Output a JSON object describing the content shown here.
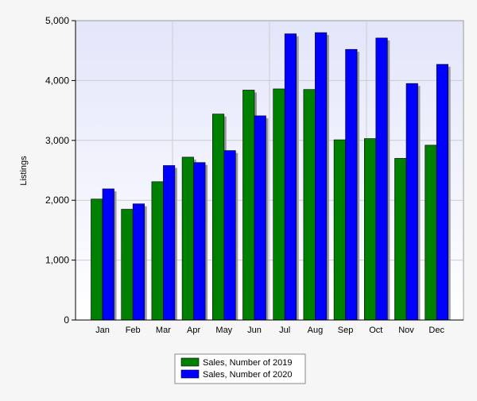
{
  "chart_data": {
    "type": "bar",
    "ylabel": "Listings",
    "xlabel": "",
    "ylim": [
      0,
      5000
    ],
    "yticks": [
      0,
      1000,
      2000,
      3000,
      4000,
      5000
    ],
    "ytick_labels": [
      "0",
      "1,000",
      "2,000",
      "3,000",
      "4,000",
      "5,000"
    ],
    "grid": true,
    "legend_position": "bottom-center",
    "categories": [
      "Jan",
      "Feb",
      "Mar",
      "Apr",
      "May",
      "Jun",
      "Jul",
      "Aug",
      "Sep",
      "Oct",
      "Nov",
      "Dec"
    ],
    "series": [
      {
        "name": "Sales, Number of 2019",
        "color": "#008000",
        "values": [
          2020,
          1850,
          2310,
          2720,
          3440,
          3840,
          3860,
          3850,
          3010,
          3030,
          2700,
          2920
        ]
      },
      {
        "name": "Sales, Number of 2020",
        "color": "#0000ff",
        "values": [
          2190,
          1940,
          2580,
          2630,
          2830,
          3410,
          4780,
          4800,
          4520,
          4710,
          3950,
          4270
        ]
      }
    ]
  }
}
